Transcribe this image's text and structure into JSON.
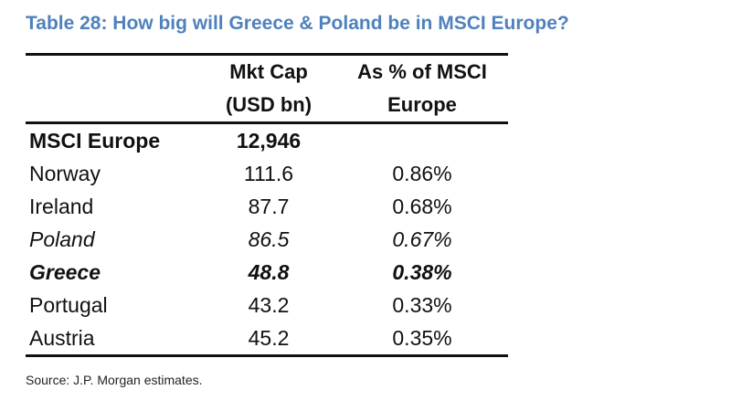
{
  "title": "Table 28: How big will Greece & Poland be in MSCI Europe?",
  "headers": {
    "col1": "",
    "col2_line1": "Mkt Cap",
    "col2_line2": "(USD bn)",
    "col3_line1": "As % of MSCI",
    "col3_line2": "Europe"
  },
  "rows": [
    {
      "label": "MSCI Europe",
      "mkt_cap": "12,946",
      "pct": "",
      "style": "bold"
    },
    {
      "label": "Norway",
      "mkt_cap": "111.6",
      "pct": "0.86%",
      "style": "normal"
    },
    {
      "label": "Ireland",
      "mkt_cap": "87.7",
      "pct": "0.68%",
      "style": "normal"
    },
    {
      "label": "Poland",
      "mkt_cap": "86.5",
      "pct": "0.67%",
      "style": "italic"
    },
    {
      "label": "Greece",
      "mkt_cap": "48.8",
      "pct": "0.38%",
      "style": "bold-italic"
    },
    {
      "label": "Portugal",
      "mkt_cap": "43.2",
      "pct": "0.33%",
      "style": "normal"
    },
    {
      "label": "Austria",
      "mkt_cap": "45.2",
      "pct": "0.35%",
      "style": "normal"
    }
  ],
  "source": "Source: J.P. Morgan estimates."
}
